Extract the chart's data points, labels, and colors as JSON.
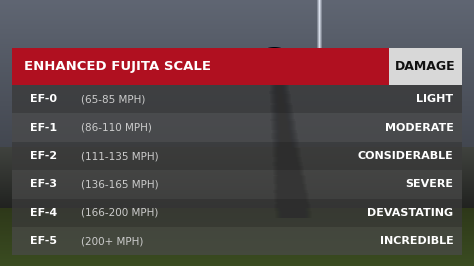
{
  "title": "ENHANCED FUJITA SCALE",
  "damage_label": "DAMAGE",
  "rows": [
    {
      "ef": "EF-0",
      "speed": "(65-85 MPH)",
      "damage": "LIGHT"
    },
    {
      "ef": "EF-1",
      "speed": "(86-110 MPH)",
      "damage": "MODERATE"
    },
    {
      "ef": "EF-2",
      "speed": "(111-135 MPH)",
      "damage": "CONSIDERABLE"
    },
    {
      "ef": "EF-3",
      "speed": "(136-165 MPH)",
      "damage": "SEVERE"
    },
    {
      "ef": "EF-4",
      "speed": "(166-200 MPH)",
      "damage": "DEVASTATING"
    },
    {
      "ef": "EF-5",
      "speed": "(200+ MPH)",
      "damage": "INCREDIBLE"
    }
  ],
  "header_bg_color": "#b01020",
  "header_text_color": "#ffffff",
  "damage_box_color": "#d8d8d8",
  "damage_text_color": "#111111",
  "row_bg_even": "#3a3a3a",
  "row_bg_odd": "#4a4a4a",
  "row_bg_alpha_even": 0.78,
  "row_bg_alpha_odd": 0.72,
  "ef_text_color": "#ffffff",
  "speed_text_color": "#cccccc",
  "damage_row_text_color": "#ffffff",
  "figsize": [
    4.74,
    2.66
  ],
  "dpi": 100
}
